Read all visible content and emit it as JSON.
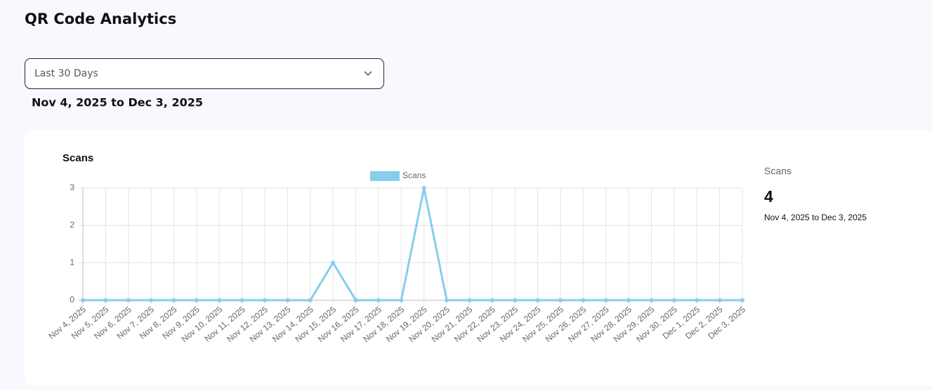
{
  "page": {
    "title": "QR Code Analytics",
    "select": "Last 30 Days",
    "range": "Nov 4, 2025 to Dec 3, 2025"
  },
  "chart_data": {
    "type": "line",
    "title": "Scans",
    "categories": [
      "Nov 4, 2025",
      "Nov 5, 2025",
      "Nov 6, 2025",
      "Nov 7, 2025",
      "Nov 8, 2025",
      "Nov 9, 2025",
      "Nov 10, 2025",
      "Nov 11, 2025",
      "Nov 12, 2025",
      "Nov 13, 2025",
      "Nov 14, 2025",
      "Nov 15, 2025",
      "Nov 16, 2025",
      "Nov 17, 2025",
      "Nov 18, 2025",
      "Nov 19, 2025",
      "Nov 20, 2025",
      "Nov 21, 2025",
      "Nov 22, 2025",
      "Nov 23, 2025",
      "Nov 24, 2025",
      "Nov 25, 2025",
      "Nov 26, 2025",
      "Nov 27, 2025",
      "Nov 28, 2025",
      "Nov 29, 2025",
      "Nov 30, 2025",
      "Dec 1, 2025",
      "Dec 2, 2025",
      "Dec 3, 2025"
    ],
    "series": [
      {
        "name": "Scans",
        "color": "#87ceeb",
        "values": [
          0,
          0,
          0,
          0,
          0,
          0,
          0,
          0,
          0,
          0,
          0,
          1,
          0,
          0,
          0,
          3,
          0,
          0,
          0,
          0,
          0,
          0,
          0,
          0,
          0,
          0,
          0,
          0,
          0,
          0
        ]
      }
    ],
    "ylim": [
      0,
      3
    ],
    "yticks": [
      0,
      1,
      2,
      3
    ],
    "grid": true,
    "legend": "top"
  },
  "summary": {
    "label": "Scans",
    "value": 4,
    "range": "Nov 4, 2025 to Dec 3, 2025"
  }
}
